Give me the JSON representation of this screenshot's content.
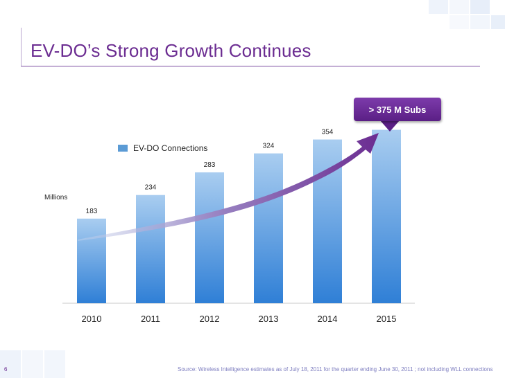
{
  "slide": {
    "title": "EV-DO’s Strong Growth Continues",
    "page_number": "6",
    "source_note": "Source: Wireless Intelligence estimates as of  July 18, 2011 for the quarter ending June 30, 2011 ; not including WLL connections"
  },
  "callout": {
    "text": "> 375 M Subs"
  },
  "colors": {
    "title": "#6b2c91",
    "bar_top": "#a9cdf0",
    "bar_bottom": "#2f7fd6",
    "arrow": "#6b2c91"
  },
  "chart_data": {
    "type": "bar",
    "title": "EV-DO’s Strong Growth Continues",
    "categories": [
      "2010",
      "2011",
      "2012",
      "2013",
      "2014",
      "2015"
    ],
    "series": [
      {
        "name": "EV-DO Connections",
        "values": [
          183,
          234,
          283,
          324,
          354,
          375
        ]
      }
    ],
    "data_labels": [
      "183",
      "234",
      "283",
      "324",
      "354",
      ""
    ],
    "ylabel": "Millions",
    "xlabel": "",
    "ylim": [
      0,
      400
    ],
    "grid": false,
    "legend_position": "top-left",
    "annotation": "> 375 M Subs"
  }
}
